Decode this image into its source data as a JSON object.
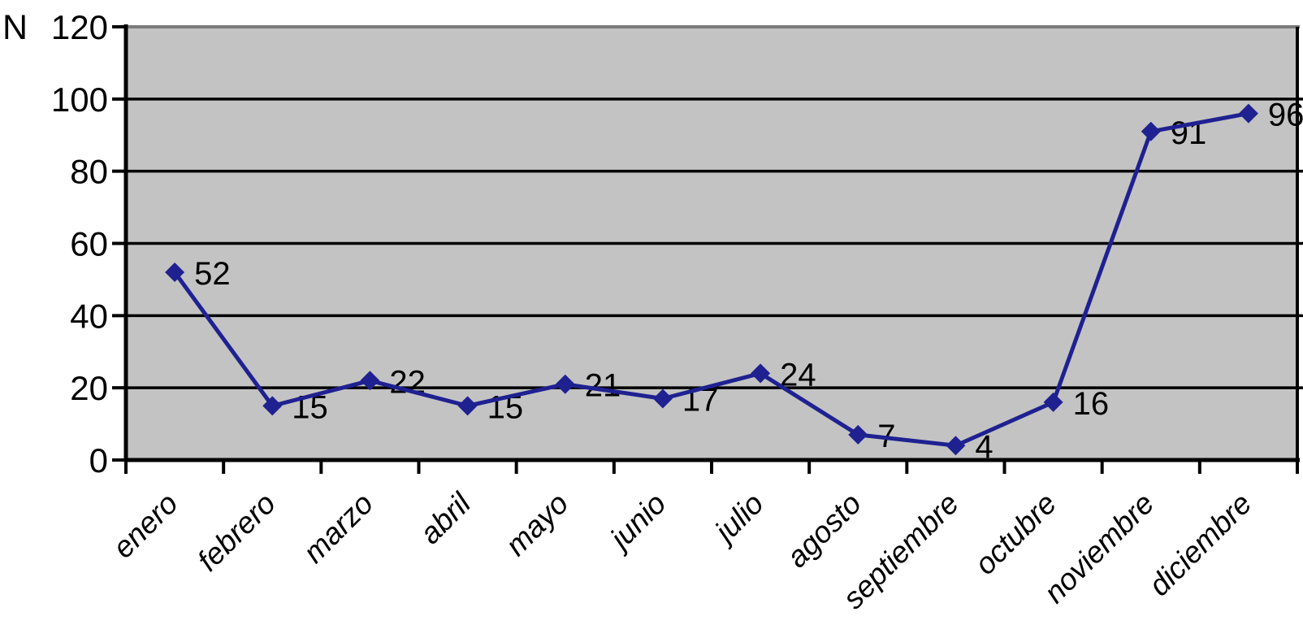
{
  "chart_data": {
    "type": "line",
    "title": "",
    "ylabel": "N",
    "xlabel": "",
    "categories": [
      "enero",
      "febrero",
      "marzo",
      "abril",
      "mayo",
      "junio",
      "julio",
      "agosto",
      "septiembre",
      "octubre",
      "noviembre",
      "diciembre"
    ],
    "values": [
      52,
      15,
      22,
      15,
      21,
      17,
      24,
      7,
      4,
      16,
      91,
      96
    ],
    "data_labels": true,
    "ylim": [
      0,
      120
    ],
    "yticks": [
      0,
      20,
      40,
      60,
      80,
      100,
      120
    ],
    "grid": "horizontal",
    "legend": "none",
    "marker": "diamond",
    "colors": {
      "line": "#1f2191",
      "marker": "#1f2191",
      "plot_background": "#c3c3c3",
      "plot_border_top": "#7b7b7b",
      "gridline": "#000000",
      "axis": "#000000",
      "text": "#000000",
      "page_background": "#ffffff"
    }
  }
}
